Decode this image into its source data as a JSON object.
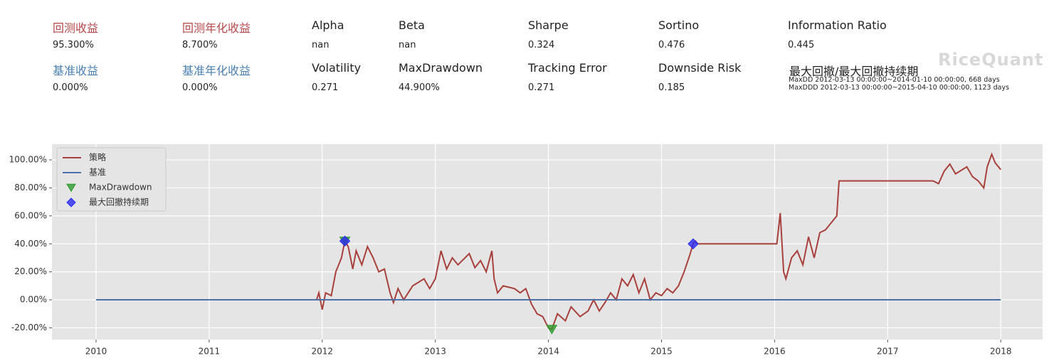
{
  "summary": {
    "items": [
      {
        "label": "回测收益",
        "value": "95.300%",
        "color": "#b5484b"
      },
      {
        "label": "回测年化收益",
        "value": "8.700%",
        "color": "#b5484b"
      },
      {
        "label": "Alpha",
        "value": "nan"
      },
      {
        "label": "Beta",
        "value": "nan"
      },
      {
        "label": "Sharpe",
        "value": "0.324"
      },
      {
        "label": "Sortino",
        "value": "0.476"
      },
      {
        "label": "Information Ratio",
        "value": "0.445"
      },
      {
        "label": "基准收益",
        "value": "0.000%",
        "color": "#4a7fb0"
      },
      {
        "label": "基准年化收益",
        "value": "0.000%",
        "color": "#4a7fb0"
      },
      {
        "label": "Volatility",
        "value": "0.271"
      },
      {
        "label": "MaxDrawdown",
        "value": "44.900%"
      },
      {
        "label": "Tracking Error",
        "value": "0.271"
      },
      {
        "label": "Downside Risk",
        "value": "0.185"
      }
    ],
    "drawdown": {
      "label": "最大回撤/最大回撤持续期",
      "lines": [
        "MaxDD  2012-03-13 00:00:00~2014-01-10 00:00:00, 668 days",
        "MaxDDD 2012-03-13 00:00:00~2015-04-10 00:00:00, 1123 days"
      ]
    },
    "watermark": "RiceQuant"
  },
  "chart_data": {
    "type": "line",
    "xlim": [
      2009.61,
      2018.37
    ],
    "xticks": [
      2010,
      2011,
      2012,
      2013,
      2014,
      2015,
      2016,
      2017,
      2018
    ],
    "ylim": [
      -28.4,
      111.2
    ],
    "yticks": [
      {
        "value": -20,
        "label": "-20.00%"
      },
      {
        "value": 0,
        "label": "0.00%"
      },
      {
        "value": 20,
        "label": "20.00%"
      },
      {
        "value": 40,
        "label": "40.00%"
      },
      {
        "value": 60,
        "label": "60.00%"
      },
      {
        "value": 80,
        "label": "80.00%"
      },
      {
        "value": 100,
        "label": "100.00%"
      }
    ],
    "grid": true,
    "legend": "upper left",
    "series": [
      {
        "name": "策略",
        "color": "#a8403c",
        "x": [
          2011.95,
          2011.97,
          2012.0,
          2012.03,
          2012.08,
          2012.12,
          2012.17,
          2012.2,
          2012.23,
          2012.27,
          2012.3,
          2012.35,
          2012.4,
          2012.45,
          2012.5,
          2012.55,
          2012.6,
          2012.63,
          2012.67,
          2012.72,
          2012.8,
          2012.9,
          2012.95,
          2013.0,
          2013.05,
          2013.1,
          2013.15,
          2013.2,
          2013.3,
          2013.35,
          2013.4,
          2013.45,
          2013.5,
          2013.52,
          2013.55,
          2013.6,
          2013.7,
          2013.75,
          2013.8,
          2013.85,
          2013.9,
          2013.95,
          2014.0,
          2014.03,
          2014.08,
          2014.15,
          2014.2,
          2014.28,
          2014.35,
          2014.4,
          2014.45,
          2014.5,
          2014.55,
          2014.6,
          2014.65,
          2014.7,
          2014.75,
          2014.8,
          2014.85,
          2014.9,
          2014.95,
          2015.0,
          2015.05,
          2015.1,
          2015.15,
          2015.2,
          2015.25,
          2015.28,
          2015.3,
          2015.32,
          2016.02,
          2016.05,
          2016.08,
          2016.1,
          2016.15,
          2016.2,
          2016.25,
          2016.3,
          2016.35,
          2016.4,
          2016.45,
          2016.5,
          2016.55,
          2016.57,
          2017.4,
          2017.45,
          2017.5,
          2017.55,
          2017.6,
          2017.7,
          2017.75,
          2017.8,
          2017.85,
          2017.88,
          2017.92,
          2017.95,
          2018.0
        ],
        "values": [
          0,
          5,
          -7,
          5,
          3,
          20,
          30,
          42,
          38,
          22,
          35,
          25,
          38,
          30,
          20,
          22,
          5,
          -2,
          8,
          0,
          10,
          15,
          8,
          15,
          35,
          22,
          30,
          25,
          33,
          23,
          28,
          20,
          35,
          15,
          5,
          10,
          8,
          5,
          8,
          -3,
          -10,
          -12,
          -20,
          -21,
          -10,
          -15,
          -5,
          -12,
          -8,
          0,
          -8,
          -2,
          5,
          0,
          15,
          10,
          18,
          5,
          15,
          0,
          5,
          3,
          8,
          5,
          10,
          20,
          32,
          40,
          42,
          40,
          40,
          62,
          20,
          15,
          30,
          35,
          25,
          45,
          30,
          48,
          50,
          55,
          60,
          85,
          85,
          83,
          92,
          97,
          90,
          95,
          88,
          85,
          80,
          95,
          104,
          98,
          93
        ]
      },
      {
        "name": "基准",
        "color": "#4a72a8",
        "x": [
          2010,
          2018
        ],
        "values": [
          0,
          0
        ]
      },
      {
        "name": "MaxDrawdown",
        "color": "#2e9a2e",
        "marker": "triangle-down",
        "x": [
          2012.2,
          2014.03
        ],
        "values": [
          42,
          -21
        ]
      },
      {
        "name": "最大回撤持续期",
        "color": "#2b2bf0",
        "marker": "diamond",
        "x": [
          2012.2,
          2015.28
        ],
        "values": [
          42,
          40
        ]
      }
    ]
  }
}
